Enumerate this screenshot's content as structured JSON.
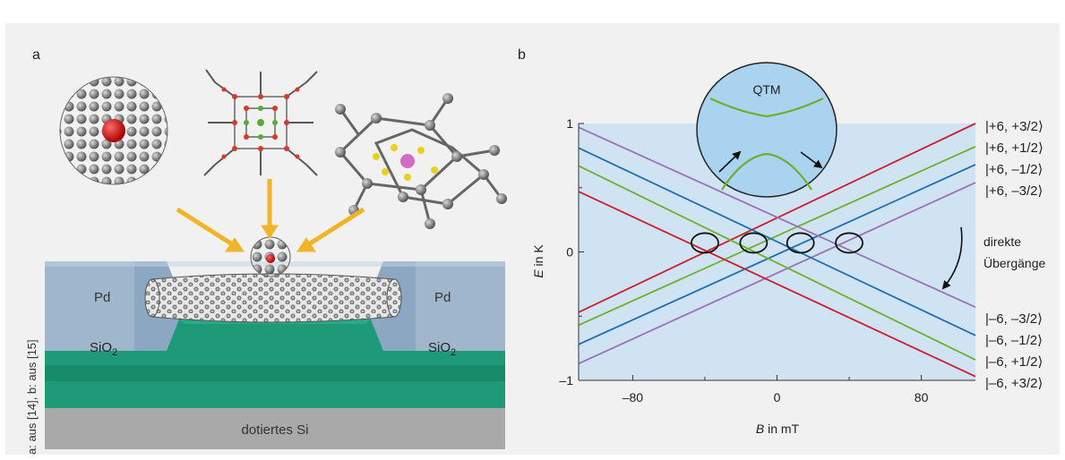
{
  "panel_a": {
    "label": "a",
    "pd_left": "Pd",
    "pd_right": "Pd",
    "sio2_left": "SiO",
    "sio2_left_sub": "2",
    "sio2_right": "SiO",
    "sio2_right_sub": "2",
    "substrate": "dotiertes Si",
    "credit": "a: aus [14], b: aus [15]",
    "colors": {
      "pd": "#9fb6cc",
      "sio2": "#1e9a78",
      "substrate": "#a9a9a9",
      "arrow": "#f0b429",
      "molecule": "#7a7a7a",
      "core": "#d42020"
    }
  },
  "panel_b": {
    "label": "b",
    "qtm_label": "QTM",
    "annotation_line1": "direkte",
    "annotation_line2": "Übergänge",
    "chart_data": {
      "type": "line",
      "xlabel_var": "B",
      "xlabel_unit": " in mT",
      "ylabel_var": "E",
      "ylabel_unit": " in K",
      "xlim": [
        -110,
        110
      ],
      "ylim": [
        -1,
        1
      ],
      "xticks": [
        -80,
        0,
        80
      ],
      "yticks": [
        -1,
        0,
        1
      ],
      "xtick_labels": [
        "–80",
        "0",
        "80"
      ],
      "ytick_labels": [
        "–1",
        "0",
        "1"
      ],
      "grid": false,
      "series": [
        {
          "name": "|+6, +3/2⟩",
          "color": "#cc1f2e",
          "x": [
            -110,
            110
          ],
          "y": [
            -0.47,
            1.0
          ]
        },
        {
          "name": "|+6, +1/2⟩",
          "color": "#6fae2e",
          "x": [
            -110,
            110
          ],
          "y": [
            -0.57,
            0.82
          ]
        },
        {
          "name": "|+6, −1/2⟩",
          "color": "#1f6fb0",
          "x": [
            -110,
            110
          ],
          "y": [
            -0.72,
            0.68
          ]
        },
        {
          "name": "|+6, −3/2⟩",
          "color": "#9b72b8",
          "x": [
            -110,
            110
          ],
          "y": [
            -0.87,
            0.54
          ]
        },
        {
          "name": "|−6, −3/2⟩",
          "color": "#9b72b8",
          "x": [
            -110,
            110
          ],
          "y": [
            0.97,
            -0.43
          ]
        },
        {
          "name": "|−6, −1/2⟩",
          "color": "#1f6fb0",
          "x": [
            -110,
            110
          ],
          "y": [
            0.81,
            -0.65
          ]
        },
        {
          "name": "|−6, +1/2⟩",
          "color": "#6fae2e",
          "x": [
            -110,
            110
          ],
          "y": [
            0.67,
            -0.84
          ]
        },
        {
          "name": "|−6, +3/2⟩",
          "color": "#cc1f2e",
          "x": [
            -110,
            110
          ],
          "y": [
            0.47,
            -0.97
          ]
        }
      ],
      "state_labels_upper": [
        "|+6, +3/2⟩",
        "|+6, +1/2⟩",
        "|+6, –1/2⟩",
        "|+6, –3/2⟩"
      ],
      "state_labels_lower": [
        "|–6, –3/2⟩",
        "|–6, –1/2⟩",
        "|–6, +1/2⟩",
        "|–6, +3/2⟩"
      ],
      "crossings_x": [
        -40,
        -13,
        13,
        40
      ],
      "crossings_y": [
        0.07,
        0.07,
        0.07,
        0.07
      ],
      "colors": {
        "plot_bg": "#cfe3f3",
        "inset_bg": "#a9d3ee",
        "inset_curve": "#6fae2e"
      }
    }
  }
}
